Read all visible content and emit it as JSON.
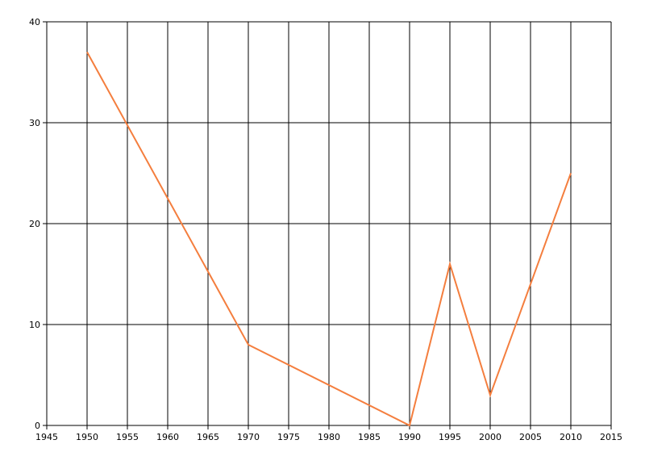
{
  "chart_data": {
    "type": "line",
    "x": [
      1950,
      1970,
      1990,
      1995,
      2000,
      2010
    ],
    "series": [
      {
        "color": "#f47e3e",
        "values": [
          37,
          8,
          0,
          16,
          3,
          25
        ]
      }
    ],
    "xlim": [
      1945,
      2015
    ],
    "xticks": [
      1945,
      1950,
      1955,
      1960,
      1965,
      1970,
      1975,
      1980,
      1985,
      1990,
      1995,
      2000,
      2005,
      2010,
      2015
    ],
    "ylim": [
      0,
      40
    ],
    "yticks": [
      0,
      10,
      20,
      30,
      40
    ],
    "grid": true
  }
}
